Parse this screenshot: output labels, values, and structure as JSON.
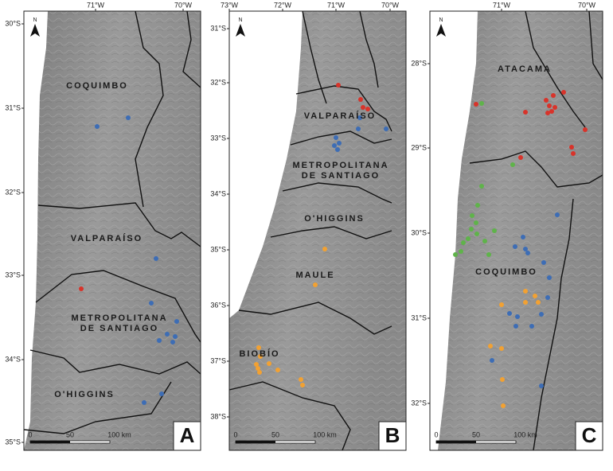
{
  "north": "N",
  "panels": [
    {
      "letter": "A",
      "lon_labels": [
        "71°W",
        "70°W"
      ],
      "lat_labels": [
        "30°S",
        "31°S",
        "32°S",
        "33°S",
        "34°S",
        "35°S"
      ],
      "regions": [
        {
          "lines": [
            "COQUIMBO"
          ]
        },
        {
          "lines": [
            "VALPARAÍSO"
          ]
        },
        {
          "lines": [
            "METROPOLITANA",
            "DE SANTIAGO"
          ]
        },
        {
          "lines": [
            "O'HIGGINS"
          ]
        }
      ],
      "scale": [
        "0",
        "50",
        "100 km"
      ]
    },
    {
      "letter": "B",
      "lon_labels": [
        "73°W",
        "72°W",
        "71°W",
        "70°W"
      ],
      "lat_labels": [
        "31°S",
        "32°S",
        "33°S",
        "34°S",
        "35°S",
        "36°S",
        "37°S",
        "38°S"
      ],
      "regions": [
        {
          "lines": [
            "VALPARAÍSO"
          ]
        },
        {
          "lines": [
            "METROPOLITANA",
            "DE SANTIAGO"
          ]
        },
        {
          "lines": [
            "O'HIGGINS"
          ]
        },
        {
          "lines": [
            "MAULE"
          ]
        },
        {
          "lines": [
            "BIOBÍO"
          ]
        }
      ],
      "scale": [
        "0",
        "50",
        "100 km"
      ]
    },
    {
      "letter": "C",
      "lon_labels": [
        "71°W",
        "70°W"
      ],
      "lat_labels": [
        "28°S",
        "29°S",
        "30°S",
        "31°S",
        "32°S"
      ],
      "regions": [
        {
          "lines": [
            "ATACAMA"
          ]
        },
        {
          "lines": [
            "COQUIMBO"
          ]
        }
      ],
      "scale": [
        "0",
        "50",
        "100 km"
      ]
    }
  ]
}
